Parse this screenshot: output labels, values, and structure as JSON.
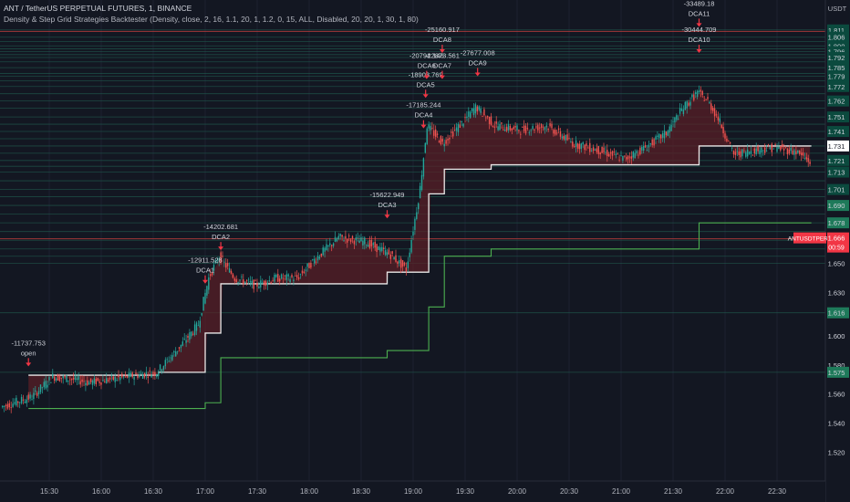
{
  "header": {
    "symbol_line": "ANT / TetherUS PERPETUAL FUTURES, 1, BINANCE",
    "indicator_line": "Density & Step Grid Strategies Backtester (Density, close, 2, 16, 1.1, 20, 1, 1.2, 0, 15, ALL, Disabled, 20, 20, 1, 30, 1, 80)"
  },
  "currency": "USDT",
  "symbol_tag": {
    "label": "ANTUSDTPERP",
    "price": "1.666",
    "countdown": "00:59"
  },
  "colors": {
    "background": "#131722",
    "up": "#26a69a",
    "down": "#ef5350",
    "avg_line": "#e8e8e8",
    "tp_line": "#4caf50",
    "fill": "#5c1f26"
  },
  "chart_data": {
    "type": "candlestick",
    "x_ticks": [
      "15:30",
      "16:00",
      "16:30",
      "17:00",
      "17:30",
      "18:00",
      "18:30",
      "19:00",
      "19:30",
      "20:00",
      "20:30",
      "21:00",
      "21:30",
      "22:00",
      "22:30"
    ],
    "y_ticks": [
      "1.811",
      "1.806",
      "1.800",
      "1.796",
      "1.792",
      "1.785",
      "1.779",
      "1.772",
      "1.762",
      "1.751",
      "1.741",
      "1.731",
      "1.721",
      "1.713",
      "1.701",
      "1.690",
      "1.678",
      "1.666",
      "1.650",
      "1.630",
      "1.616",
      "1.600",
      "1.580",
      "1.575",
      "1.560",
      "1.540",
      "1.520"
    ],
    "y_range": [
      1.512,
      1.814
    ],
    "current_price_label": "1.731",
    "highlighted_ticks": [
      "1.690",
      "1.678",
      "1.616",
      "1.575"
    ],
    "price_path": [
      [
        15.05,
        1.551
      ],
      [
        15.35,
        1.558
      ],
      [
        15.55,
        1.572
      ],
      [
        15.75,
        1.57
      ],
      [
        15.9,
        1.568
      ],
      [
        16.1,
        1.57
      ],
      [
        16.35,
        1.573
      ],
      [
        16.55,
        1.575
      ],
      [
        16.8,
        1.595
      ],
      [
        16.95,
        1.608
      ],
      [
        17.05,
        1.64
      ],
      [
        17.15,
        1.655
      ],
      [
        17.3,
        1.64
      ],
      [
        17.5,
        1.635
      ],
      [
        17.7,
        1.64
      ],
      [
        17.9,
        1.64
      ],
      [
        18.1,
        1.655
      ],
      [
        18.3,
        1.668
      ],
      [
        18.55,
        1.665
      ],
      [
        18.8,
        1.656
      ],
      [
        18.95,
        1.646
      ],
      [
        19.08,
        1.7
      ],
      [
        19.15,
        1.745
      ],
      [
        19.3,
        1.733
      ],
      [
        19.5,
        1.748
      ],
      [
        19.62,
        1.758
      ],
      [
        19.8,
        1.745
      ],
      [
        20.05,
        1.742
      ],
      [
        20.3,
        1.745
      ],
      [
        20.55,
        1.733
      ],
      [
        20.8,
        1.728
      ],
      [
        21.05,
        1.722
      ],
      [
        21.25,
        1.73
      ],
      [
        21.45,
        1.74
      ],
      [
        21.6,
        1.756
      ],
      [
        21.75,
        1.768
      ],
      [
        21.85,
        1.762
      ],
      [
        21.95,
        1.75
      ],
      [
        22.1,
        1.725
      ],
      [
        22.3,
        1.728
      ],
      [
        22.5,
        1.73
      ],
      [
        22.7,
        1.727
      ],
      [
        22.83,
        1.72
      ]
    ],
    "avg_entry_steps": [
      [
        15.3,
        1.573
      ],
      [
        16.55,
        1.575
      ],
      [
        17.0,
        1.602
      ],
      [
        17.15,
        1.636
      ],
      [
        18.75,
        1.644
      ],
      [
        19.15,
        1.698
      ],
      [
        19.3,
        1.715
      ],
      [
        19.75,
        1.718
      ],
      [
        21.75,
        1.731
      ],
      [
        22.83,
        1.731
      ]
    ],
    "tp_steps": [
      [
        15.3,
        1.55
      ],
      [
        17.0,
        1.554
      ],
      [
        17.15,
        1.585
      ],
      [
        18.75,
        1.59
      ],
      [
        19.15,
        1.62
      ],
      [
        19.3,
        1.655
      ],
      [
        19.75,
        1.66
      ],
      [
        21.75,
        1.678
      ],
      [
        22.83,
        1.678
      ]
    ],
    "grid_levels": [
      1.811,
      1.806,
      1.803,
      1.8,
      1.798,
      1.796,
      1.794,
      1.792,
      1.789,
      1.785,
      1.781,
      1.779,
      1.776,
      1.772,
      1.767,
      1.762,
      1.757,
      1.751,
      1.746,
      1.741,
      1.736,
      1.731,
      1.726,
      1.721,
      1.717,
      1.713,
      1.707,
      1.701,
      1.696,
      1.69,
      1.684,
      1.678,
      1.672,
      1.666,
      1.66,
      1.655,
      1.65,
      1.616,
      1.575
    ],
    "red_lines": [
      1.81,
      1.667
    ],
    "annotations": [
      {
        "value": "-11737.753",
        "tag": "open",
        "t": 15.3,
        "price": 1.581
      },
      {
        "value": "-12911.528",
        "tag": "DCA1",
        "t": 17.0,
        "price": 1.638
      },
      {
        "value": "-14202.681",
        "tag": "DCA2",
        "t": 17.15,
        "price": 1.661
      },
      {
        "value": "-15622.949",
        "tag": "DCA3",
        "t": 18.75,
        "price": 1.683
      },
      {
        "value": "-17185.244",
        "tag": "DCA4",
        "t": 19.1,
        "price": 1.745
      },
      {
        "value": "-18903.769",
        "tag": "DCA5",
        "t": 19.12,
        "price": 1.766
      },
      {
        "value": "-20794.146",
        "tag": "DCA6",
        "t": 19.13,
        "price": 1.779
      },
      {
        "value": "-22873.561",
        "tag": "DCA7",
        "t": 19.28,
        "price": 1.779
      },
      {
        "value": "-25160.917",
        "tag": "DCA8",
        "t": 19.28,
        "price": 1.797
      },
      {
        "value": "-27677.008",
        "tag": "DCA9",
        "t": 19.62,
        "price": 1.781
      },
      {
        "value": "-30444.709",
        "tag": "DCA10",
        "t": 21.75,
        "price": 1.797
      },
      {
        "value": "-33489.18",
        "tag": "DCA11",
        "t": 21.75,
        "price": 1.815
      }
    ]
  }
}
